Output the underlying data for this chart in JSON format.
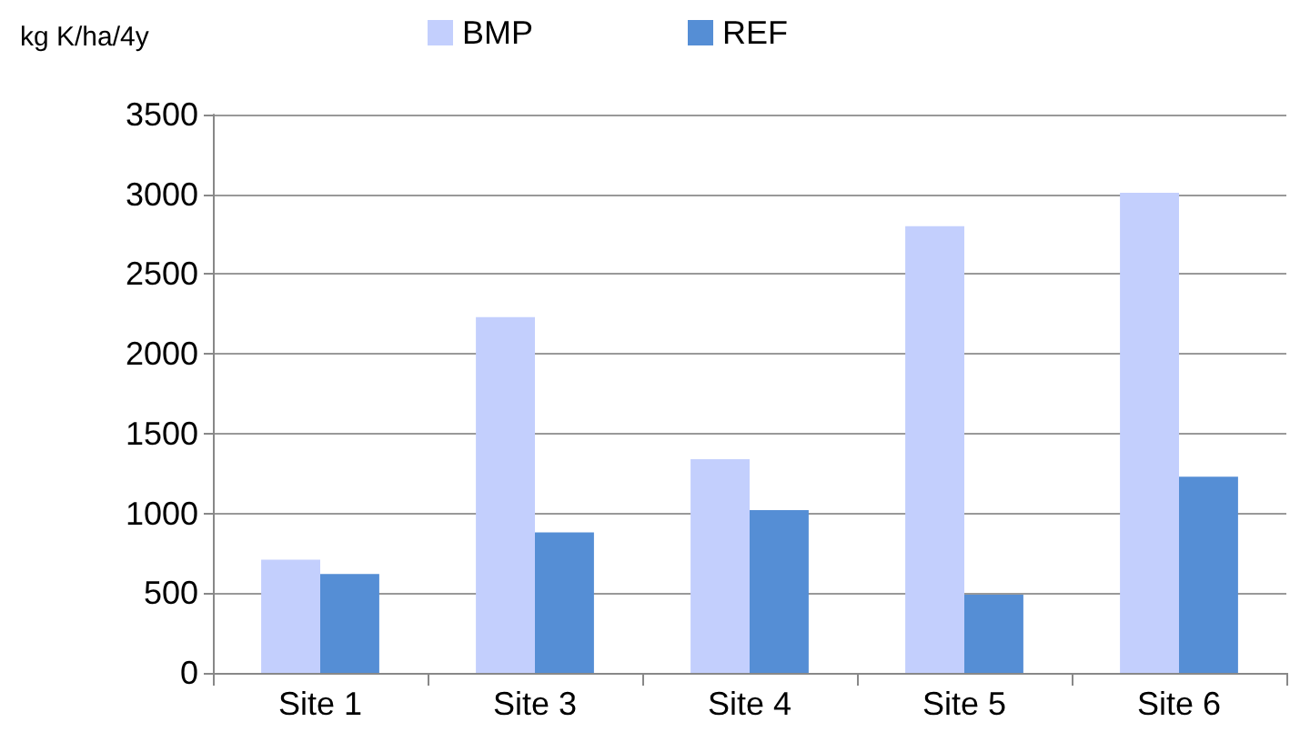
{
  "chart_data": {
    "type": "bar",
    "ylabel": "kg K/ha/4y",
    "categories": [
      "Site 1",
      "Site 3",
      "Site 4",
      "Site 5",
      "Site 6"
    ],
    "series": [
      {
        "name": "BMP",
        "color": "#c3cffd",
        "values": [
          710,
          2230,
          1340,
          2800,
          3010
        ]
      },
      {
        "name": "REF",
        "color": "#558ed5",
        "values": [
          620,
          880,
          1020,
          490,
          1230
        ]
      }
    ],
    "ylim": [
      0,
      3500
    ],
    "yticks": [
      0,
      500,
      1000,
      1500,
      2000,
      2500,
      3000,
      3500
    ],
    "grid": "y",
    "legend": "top"
  }
}
